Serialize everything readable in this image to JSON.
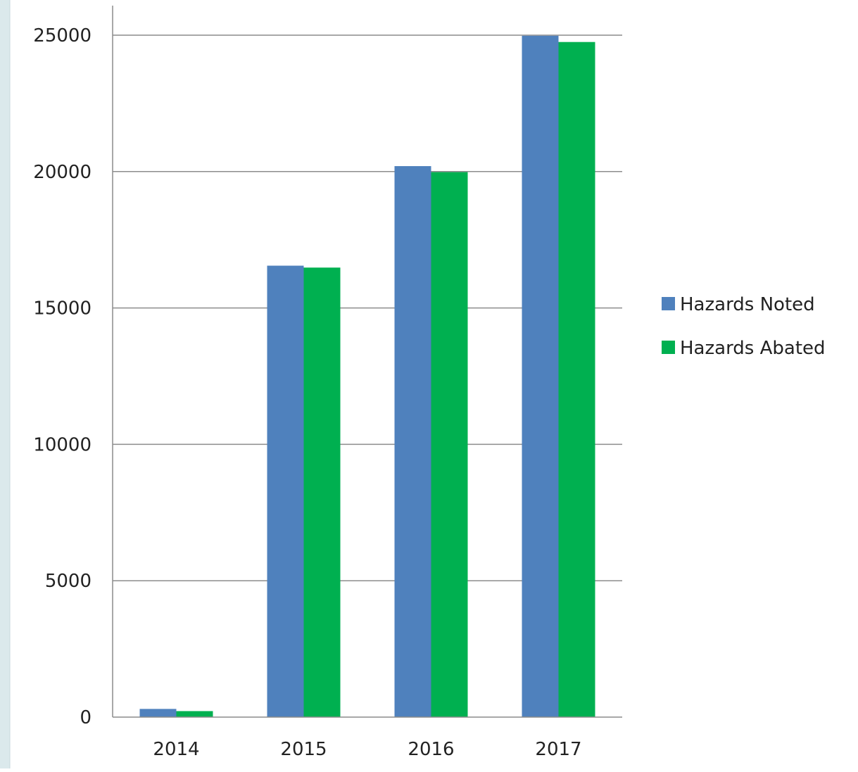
{
  "colors": {
    "background": "#ffffff",
    "gridline": "#8c8c8c",
    "axis": "#8c8c8c",
    "text": "#222222",
    "edge_strip": "#dbe9ec"
  },
  "chart_data": {
    "type": "bar",
    "categories": [
      "2014",
      "2015",
      "2016",
      "2017"
    ],
    "series": [
      {
        "name": "Hazards Noted",
        "color": "#4f81bd",
        "values": [
          300,
          16550,
          20200,
          24980
        ]
      },
      {
        "name": "Hazards Abated",
        "color": "#00b050",
        "values": [
          220,
          16480,
          19980,
          24750
        ]
      }
    ],
    "y_ticks": [
      "0",
      "5000",
      "10000",
      "15000",
      "20000",
      "25000"
    ],
    "ylim": [
      0,
      25000
    ],
    "grid": true,
    "legend_position": "right",
    "title": "",
    "xlabel": "",
    "ylabel": ""
  }
}
